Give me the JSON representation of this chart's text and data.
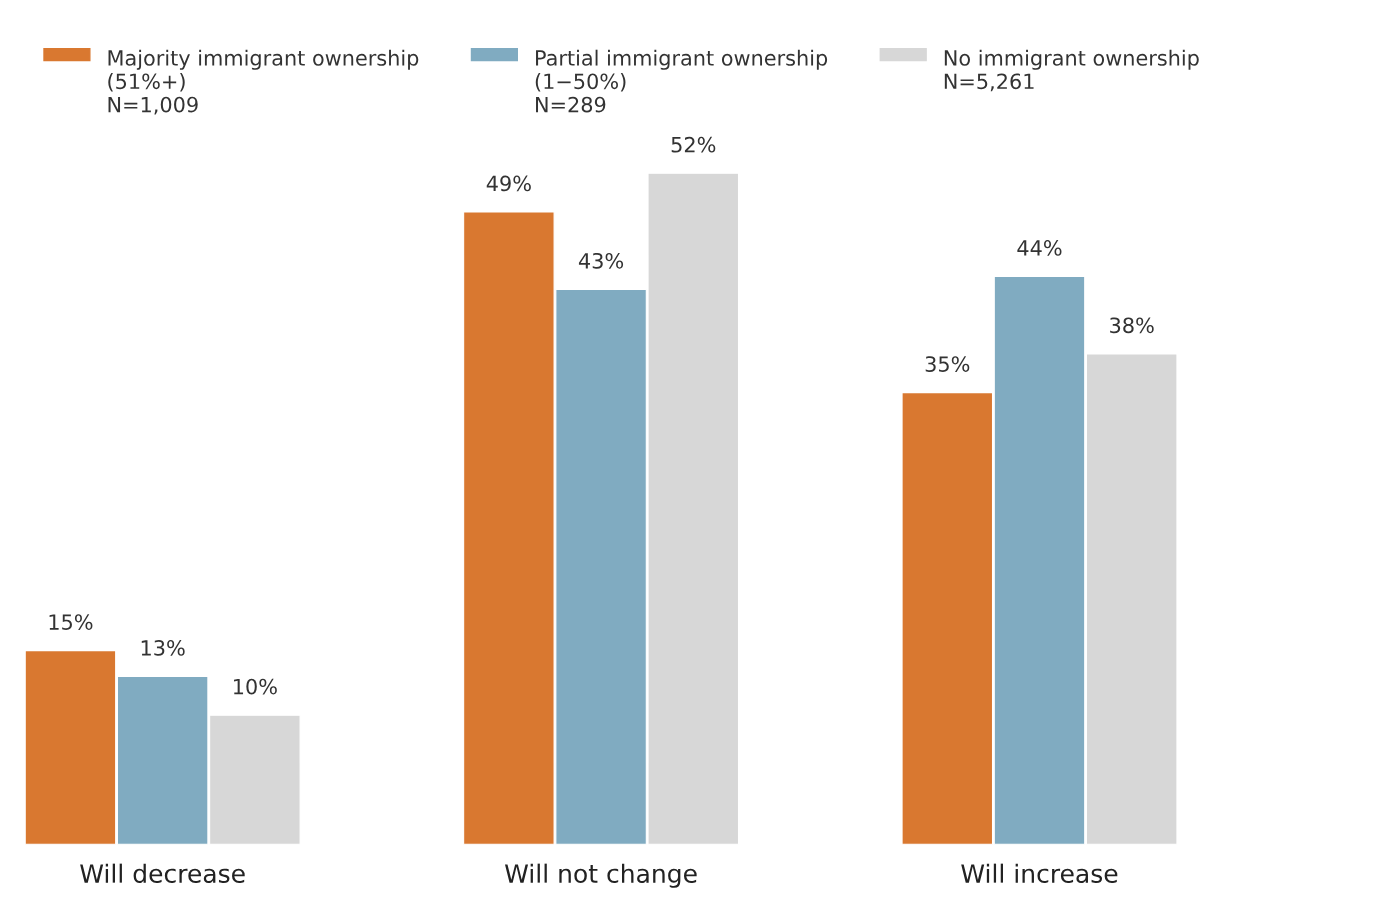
{
  "chart_data": {
    "type": "bar",
    "categories": [
      "Will decrease",
      "Will not change",
      "Will increase"
    ],
    "series": [
      {
        "name": "Majority immigrant ownership\n(51%+)\nN=1,009",
        "color": "#d97830",
        "values": [
          15,
          49,
          35
        ],
        "value_labels": [
          "15%",
          "49%",
          "35%"
        ]
      },
      {
        "name": "Partial immigrant ownership\n(1−50%)\nN=289",
        "color": "#80abc1",
        "values": [
          13,
          43,
          44
        ],
        "value_labels": [
          "13%",
          "43%",
          "44%"
        ]
      },
      {
        "name": "No immigrant ownership\nN=5,261",
        "color": "#d7d7d7",
        "values": [
          10,
          52,
          38
        ],
        "value_labels": [
          "10%",
          "52%",
          "38%"
        ]
      }
    ],
    "legend": "top",
    "grid": false
  }
}
